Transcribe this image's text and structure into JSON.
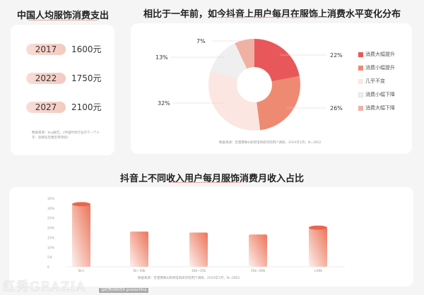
{
  "left": {
    "title": "中国人均服饰消费支出",
    "items": [
      {
        "year": "2017",
        "value": "1600元"
      },
      {
        "year": "2022",
        "value": "1750元"
      },
      {
        "year": "2027",
        "value": "2100元"
      }
    ],
    "source": "数据来源：bcg报告，《中国时尚行业的下一个十年：高端化至臻至简持续》"
  },
  "chart_data": [
    {
      "type": "pie",
      "title": "相比于一年前，如今抖音上用户每月在服饰上消费水平变化分布",
      "categories": [
        "消费大幅提升",
        "消费小幅提升",
        "几乎不变",
        "消费小幅下降",
        "消费大幅下降"
      ],
      "values": [
        22,
        26,
        32,
        13,
        7
      ],
      "labels": [
        "22%",
        "26%",
        "32%",
        "13%",
        "7%"
      ],
      "colors": [
        "#e8585a",
        "#ef8a72",
        "#fbe6e1",
        "#efefef",
        "#f0b0a3"
      ],
      "legend": "right",
      "donut": true,
      "source": "数据来源：巨量算数&新榜电商研究院用户调研，2024年1月，N=2852"
    },
    {
      "type": "bar",
      "title": "抖音上不同收入用户每月服饰消费月收入占比",
      "categories": [
        "5k<",
        "5k~10k",
        "10k~15k",
        "15k~20k",
        ">20k"
      ],
      "values": [
        32,
        18,
        17.5,
        16.5,
        20
      ],
      "yticks": [
        "35%",
        "30%",
        "25%",
        "20%",
        "15%",
        "10%",
        "5%",
        "0"
      ],
      "ylim": [
        0,
        35
      ],
      "color": "#ec7458",
      "source": "数据来源：巨量算数&新榜电商研究院用户调研，2024年1月，N=2852"
    }
  ],
  "watermark": {
    "logo": "红秀GRAZIA",
    "handles": "@红秀GRAZIA  graziachina"
  }
}
